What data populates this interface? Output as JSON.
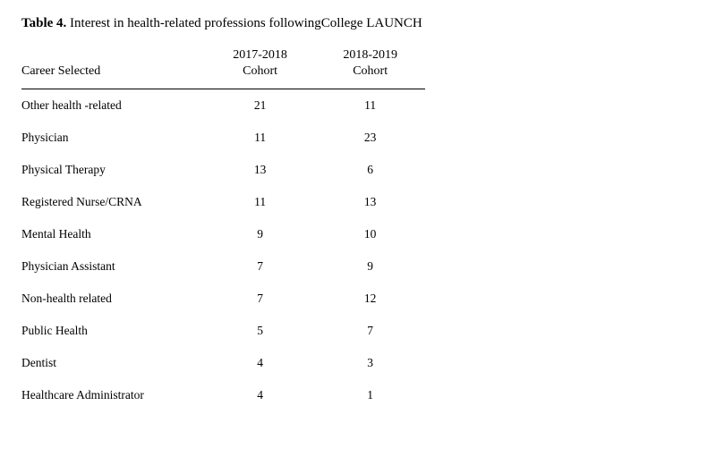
{
  "table": {
    "label_bold": "Table 4.",
    "label_rest": " Interest in health-related professions followingCollege LAUNCH",
    "columns": {
      "career": "Career Selected",
      "cohort1_line1": "2017-2018",
      "cohort1_line2": "Cohort",
      "cohort2_line1": "2018-2019",
      "cohort2_line2": "Cohort"
    },
    "rows": [
      {
        "career": "Other health -related",
        "c1": "21",
        "c2": "11"
      },
      {
        "career": "Physician",
        "c1": "11",
        "c2": "23"
      },
      {
        "career": "Physical Therapy",
        "c1": "13",
        "c2": "6"
      },
      {
        "career": "Registered Nurse/CRNA",
        "c1": "11",
        "c2": "13"
      },
      {
        "career": "Mental Health",
        "c1": "9",
        "c2": "10"
      },
      {
        "career": "Physician Assistant",
        "c1": "7",
        "c2": "9"
      },
      {
        "career": "Non-health related",
        "c1": "7",
        "c2": "12"
      },
      {
        "career": "Public Health",
        "c1": "5",
        "c2": "7"
      },
      {
        "career": "Dentist",
        "c1": "4",
        "c2": "3"
      },
      {
        "career": "Healthcare Administrator",
        "c1": "4",
        "c2": "1"
      }
    ]
  },
  "colors": {
    "text": "#000000",
    "background": "#ffffff",
    "rule": "#000000"
  }
}
